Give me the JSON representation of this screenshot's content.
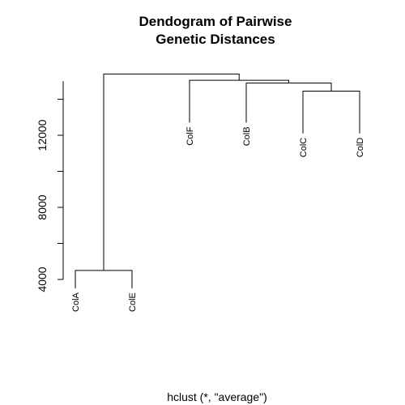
{
  "chart_data": {
    "type": "dendrogram",
    "title_lines": [
      "Dendogram of Pairwise",
      "Genetic Distances"
    ],
    "subtitle": "hclust (*, \"average\")",
    "xlabel": "",
    "ylabel": "",
    "yticks": [
      4000,
      8000,
      12000
    ],
    "yaxis_range": [
      4000,
      15000
    ],
    "leaves": [
      "ColA",
      "ColE",
      "ColF",
      "ColB",
      "ColC",
      "ColD"
    ],
    "leaf_label_heights": [
      3500,
      3500,
      12700,
      12700,
      12100,
      12100
    ],
    "merges": [
      {
        "left": "ColA",
        "right": "ColE",
        "height": 4500
      },
      {
        "left": "ColC",
        "right": "ColD",
        "height": 14450
      },
      {
        "left": "ColB",
        "right": "ColC+ColD",
        "height": 14900
      },
      {
        "left": "ColF",
        "right": "ColB+ColC+ColD",
        "height": 15050
      },
      {
        "left": "ColA+ColE",
        "right": "ColF+ColB+ColC+ColD",
        "height": 15400
      }
    ]
  }
}
